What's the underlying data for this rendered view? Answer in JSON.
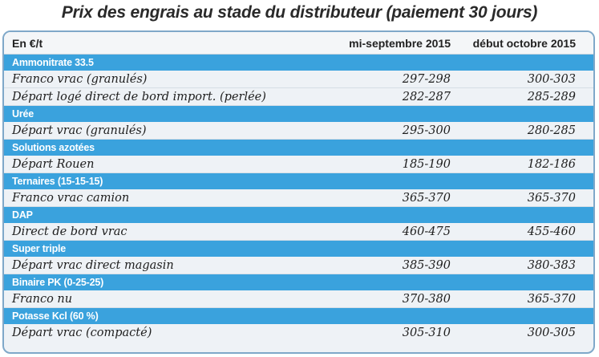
{
  "title": "Prix des engrais au stade du distributeur (paiement 30 jours)",
  "table": {
    "header": {
      "unit": "En €/t",
      "col_a": "mi-septembre 2015",
      "col_b": "début octobre 2015"
    },
    "groups": [
      {
        "category": "Ammonitrate 33.5",
        "rows": [
          {
            "label": "Franco vrac (granulés)",
            "a": "297-298",
            "b": "300-303"
          },
          {
            "label": "Départ logé direct de bord import. (perlée)",
            "a": "282-287",
            "b": "285-289"
          }
        ]
      },
      {
        "category": "Urée",
        "rows": [
          {
            "label": "Départ vrac (granulés)",
            "a": "295-300",
            "b": "280-285"
          }
        ]
      },
      {
        "category": "Solutions azotées",
        "rows": [
          {
            "label": "Départ Rouen",
            "a": "185-190",
            "b": "182-186"
          }
        ]
      },
      {
        "category": "Ternaires (15-15-15)",
        "rows": [
          {
            "label": "Franco vrac camion",
            "a": "365-370",
            "b": "365-370"
          }
        ]
      },
      {
        "category": "DAP",
        "rows": [
          {
            "label": "Direct de bord vrac",
            "a": "460-475",
            "b": "455-460"
          }
        ]
      },
      {
        "category": "Super triple",
        "rows": [
          {
            "label": "Départ vrac direct magasin",
            "a": "385-390",
            "b": "380-383"
          }
        ]
      },
      {
        "category": "Binaire PK (0-25-25)",
        "rows": [
          {
            "label": "Franco nu",
            "a": "370-380",
            "b": "365-370"
          }
        ]
      },
      {
        "category": "Potasse Kcl (60 %)",
        "rows": [
          {
            "label": "Départ vrac (compacté)",
            "a": "305-310",
            "b": "300-305"
          }
        ]
      }
    ]
  }
}
